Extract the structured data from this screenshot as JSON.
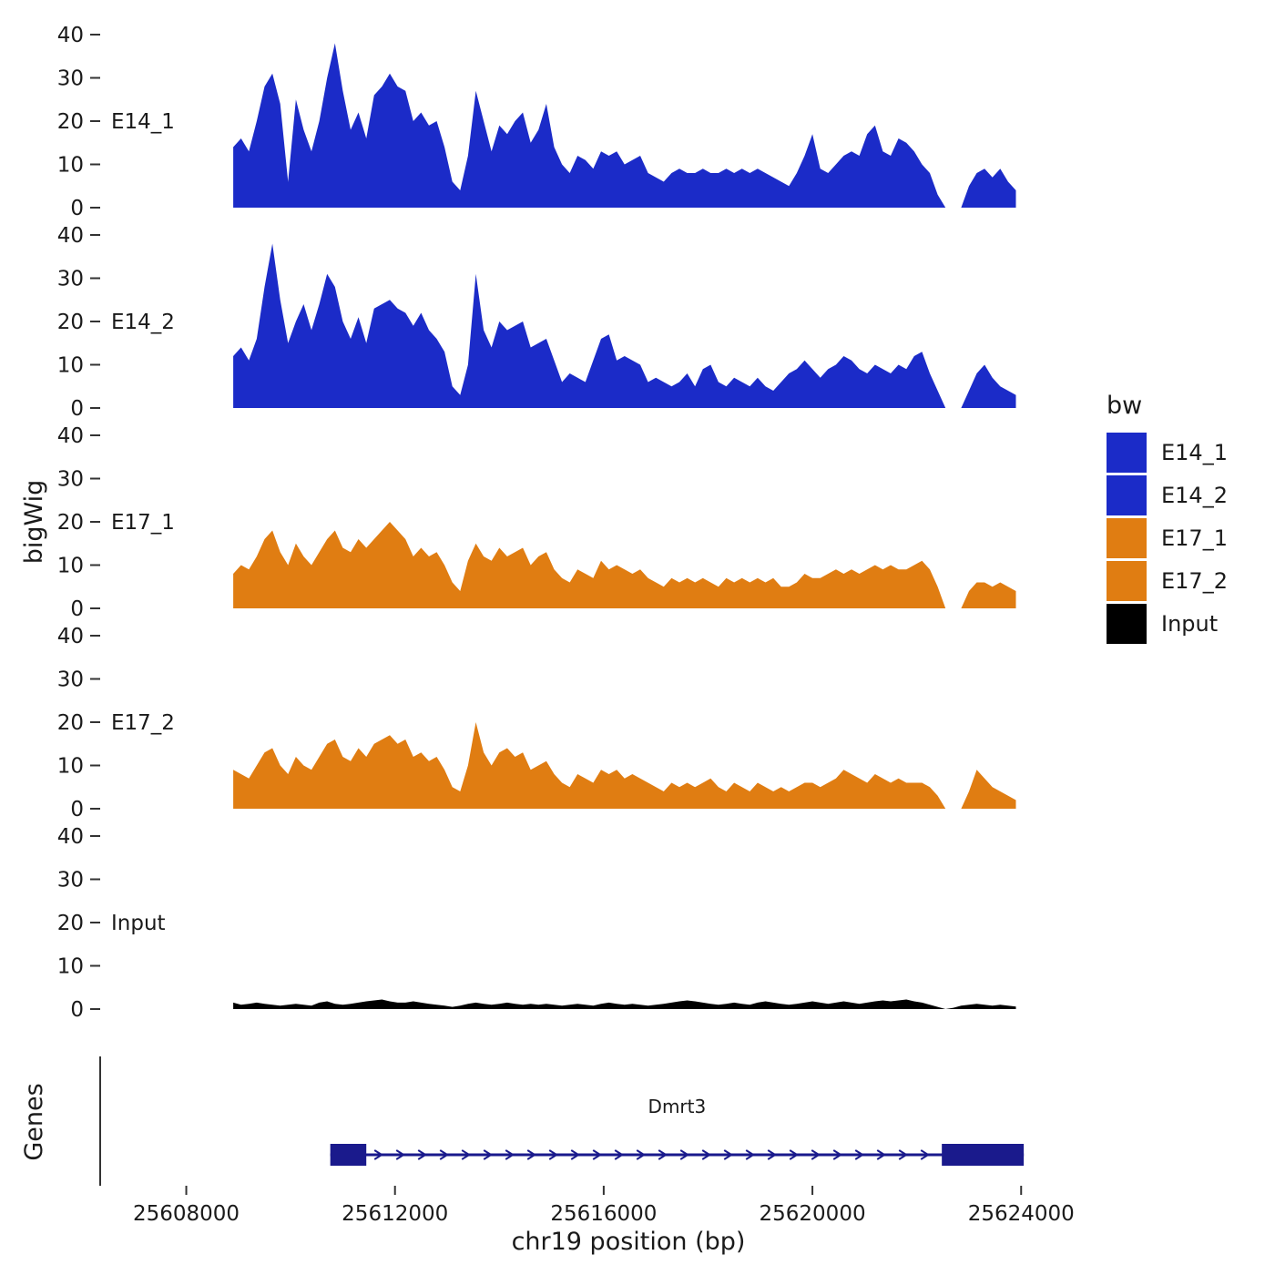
{
  "chart_data": {
    "type": "area",
    "title": "",
    "xlabel": "chr19 position (bp)",
    "ylabel": "bigWig",
    "ylim": [
      0,
      40
    ],
    "y_ticks": [
      0,
      10,
      20,
      30,
      40
    ],
    "x_ticks": [
      25608000,
      25612000,
      25616000,
      25620000,
      25624000
    ],
    "x_start": 25608900,
    "x_step": 150,
    "grid": "off",
    "legend_position": "right",
    "series": [
      {
        "name": "E14_1",
        "color": "#1b2bc8",
        "values": [
          14,
          16,
          13,
          20,
          28,
          31,
          24,
          6,
          25,
          18,
          13,
          20,
          30,
          38,
          27,
          18,
          22,
          16,
          26,
          28,
          31,
          28,
          27,
          20,
          22,
          19,
          20,
          14,
          6,
          4,
          12,
          27,
          20,
          13,
          19,
          17,
          20,
          22,
          15,
          18,
          24,
          14,
          10,
          8,
          12,
          11,
          9,
          13,
          12,
          13,
          10,
          11,
          12,
          8,
          7,
          6,
          8,
          9,
          8,
          8,
          9,
          8,
          8,
          9,
          8,
          9,
          8,
          9,
          8,
          7,
          6,
          5,
          8,
          12,
          17,
          9,
          8,
          10,
          12,
          13,
          12,
          17,
          19,
          13,
          12,
          16,
          15,
          13,
          10,
          8,
          3,
          0,
          0,
          0,
          5,
          8,
          9,
          7,
          9,
          6,
          4
        ]
      },
      {
        "name": "E14_2",
        "color": "#1b2bc8",
        "values": [
          12,
          14,
          11,
          16,
          28,
          38,
          25,
          15,
          20,
          24,
          18,
          24,
          31,
          28,
          20,
          16,
          21,
          15,
          23,
          24,
          25,
          23,
          22,
          19,
          22,
          18,
          16,
          13,
          5,
          3,
          10,
          31,
          18,
          14,
          20,
          18,
          19,
          20,
          14,
          15,
          16,
          11,
          6,
          8,
          7,
          6,
          11,
          16,
          17,
          11,
          12,
          11,
          10,
          6,
          7,
          6,
          5,
          6,
          8,
          5,
          9,
          10,
          6,
          5,
          7,
          6,
          5,
          7,
          5,
          4,
          6,
          8,
          9,
          11,
          9,
          7,
          9,
          10,
          12,
          11,
          9,
          8,
          10,
          9,
          8,
          10,
          9,
          12,
          13,
          8,
          4,
          0,
          0,
          0,
          4,
          8,
          10,
          7,
          5,
          4,
          3
        ]
      },
      {
        "name": "E17_1",
        "color": "#e07d12",
        "values": [
          8,
          10,
          9,
          12,
          16,
          18,
          13,
          10,
          15,
          12,
          10,
          13,
          16,
          18,
          14,
          13,
          16,
          14,
          16,
          18,
          20,
          18,
          16,
          12,
          14,
          12,
          13,
          10,
          6,
          4,
          11,
          15,
          12,
          11,
          14,
          12,
          13,
          14,
          10,
          12,
          13,
          9,
          7,
          6,
          9,
          8,
          7,
          11,
          9,
          10,
          9,
          8,
          9,
          7,
          6,
          5,
          7,
          6,
          7,
          6,
          7,
          6,
          5,
          7,
          6,
          7,
          6,
          7,
          6,
          7,
          5,
          5,
          6,
          8,
          7,
          7,
          8,
          9,
          8,
          9,
          8,
          9,
          10,
          9,
          10,
          9,
          9,
          10,
          11,
          9,
          5,
          0,
          0,
          0,
          4,
          6,
          6,
          5,
          6,
          5,
          4
        ]
      },
      {
        "name": "E17_2",
        "color": "#e07d12",
        "values": [
          9,
          8,
          7,
          10,
          13,
          14,
          10,
          8,
          12,
          10,
          9,
          12,
          15,
          16,
          12,
          11,
          14,
          12,
          15,
          16,
          17,
          15,
          16,
          12,
          13,
          11,
          12,
          9,
          5,
          4,
          10,
          20,
          13,
          10,
          13,
          14,
          12,
          13,
          9,
          10,
          11,
          8,
          6,
          5,
          8,
          7,
          6,
          9,
          8,
          9,
          7,
          8,
          7,
          6,
          5,
          4,
          6,
          5,
          6,
          5,
          6,
          7,
          5,
          4,
          6,
          5,
          4,
          6,
          5,
          4,
          5,
          4,
          5,
          6,
          6,
          5,
          6,
          7,
          9,
          8,
          7,
          6,
          8,
          7,
          6,
          7,
          6,
          6,
          6,
          5,
          3,
          0,
          0,
          0,
          4,
          9,
          7,
          5,
          4,
          3,
          2
        ]
      },
      {
        "name": "Input",
        "color": "#000000",
        "values": [
          1.5,
          1,
          1.2,
          1.5,
          1.2,
          1,
          0.8,
          1,
          1.2,
          1,
          0.8,
          1.5,
          1.8,
          1.2,
          1,
          1.2,
          1.5,
          1.8,
          2,
          2.2,
          1.8,
          1.5,
          1.5,
          1.8,
          1.5,
          1.2,
          1,
          0.8,
          0.5,
          0.8,
          1.2,
          1.5,
          1.2,
          1,
          1.2,
          1.5,
          1.2,
          1,
          1.2,
          1,
          1.2,
          1,
          0.8,
          1,
          1.2,
          1,
          0.8,
          1.2,
          1.5,
          1.2,
          1,
          1.2,
          1,
          0.8,
          1,
          1.2,
          1.5,
          1.8,
          2,
          1.8,
          1.5,
          1.2,
          1,
          1.2,
          1.5,
          1.2,
          1,
          1.5,
          1.8,
          1.5,
          1.2,
          1,
          1.2,
          1.5,
          1.8,
          1.5,
          1.2,
          1.5,
          1.8,
          1.5,
          1.2,
          1.5,
          1.8,
          2,
          1.8,
          2,
          2.2,
          1.8,
          1.5,
          1,
          0.5,
          0,
          0.3,
          0.8,
          1,
          1.2,
          1,
          0.8,
          1,
          0.8,
          0.6
        ]
      }
    ],
    "gene_track": {
      "label": "Genes",
      "gene": {
        "name": "Dmrt3",
        "strand": "+",
        "start": 25610760,
        "end": 25624050,
        "exons": [
          [
            25610760,
            25611450
          ],
          [
            25622480,
            25624050
          ]
        ],
        "color": "#1a1a8c"
      }
    }
  },
  "legend": {
    "title": "bw",
    "items": [
      {
        "label": "E14_1",
        "color": "#1b2bc8"
      },
      {
        "label": "E14_2",
        "color": "#1b2bc8"
      },
      {
        "label": "E17_1",
        "color": "#e07d12"
      },
      {
        "label": "E17_2",
        "color": "#e07d12"
      },
      {
        "label": "Input",
        "color": "#000000"
      }
    ]
  }
}
